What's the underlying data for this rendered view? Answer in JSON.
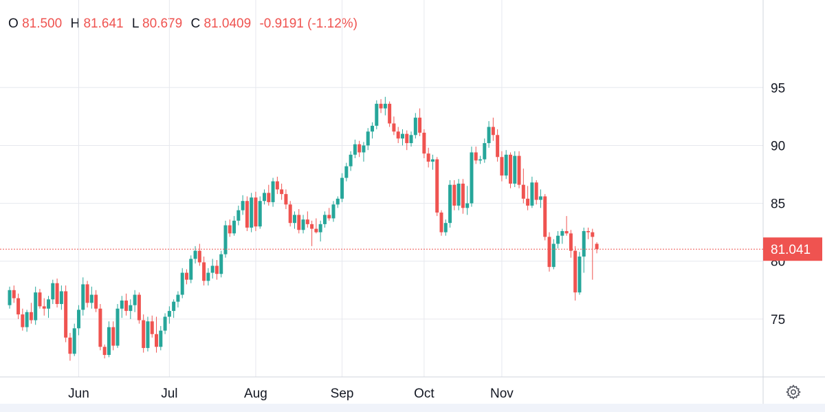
{
  "header": {
    "o_key": "O",
    "o_val": "81.500",
    "h_key": "H",
    "h_val": "81.641",
    "l_key": "L",
    "l_val": "80.679",
    "c_key": "C",
    "c_val": "81.0409",
    "change": "-0.9191 (-1.12%)"
  },
  "colors": {
    "up": "#26a69a",
    "down": "#ef5350",
    "grid": "#e6e8ee",
    "text": "#131722"
  },
  "settings_icon": "gear-icon",
  "chart_data": {
    "type": "candlestick",
    "ylim": [
      70,
      99
    ],
    "y_ticks": [
      75,
      80,
      85,
      90,
      95
    ],
    "x_labels": [
      "Jun",
      "Jul",
      "Aug",
      "Sep",
      "Oct",
      "Nov"
    ],
    "x_label_index": [
      16,
      37,
      57,
      77,
      96,
      114
    ],
    "last_price_label": "81.041",
    "last_price": 81.04,
    "grid": true,
    "candles": [
      [
        76.2,
        77.8,
        75.9,
        77.5
      ],
      [
        77.5,
        77.9,
        76.4,
        76.8
      ],
      [
        76.8,
        77.2,
        75.0,
        75.4
      ],
      [
        75.4,
        75.9,
        74.0,
        74.3
      ],
      [
        74.3,
        75.8,
        73.9,
        75.6
      ],
      [
        75.6,
        76.4,
        74.6,
        74.9
      ],
      [
        74.9,
        77.8,
        74.5,
        77.3
      ],
      [
        77.3,
        77.6,
        75.9,
        76.1
      ],
      [
        76.1,
        76.8,
        75.3,
        75.9
      ],
      [
        75.9,
        77.0,
        75.1,
        76.7
      ],
      [
        76.7,
        78.4,
        76.3,
        78.1
      ],
      [
        78.1,
        78.5,
        76.0,
        76.3
      ],
      [
        76.3,
        77.9,
        75.8,
        77.4
      ],
      [
        77.4,
        77.9,
        73.0,
        73.4
      ],
      [
        73.4,
        73.8,
        71.4,
        72.0
      ],
      [
        72.0,
        74.6,
        71.8,
        74.2
      ],
      [
        74.2,
        76.2,
        73.6,
        75.8
      ],
      [
        75.8,
        78.6,
        75.3,
        78.0
      ],
      [
        78.0,
        78.3,
        76.0,
        76.4
      ],
      [
        76.4,
        77.8,
        75.9,
        77.1
      ],
      [
        77.1,
        77.5,
        75.6,
        75.9
      ],
      [
        75.9,
        76.3,
        72.3,
        72.6
      ],
      [
        72.6,
        72.8,
        71.6,
        71.9
      ],
      [
        71.9,
        74.8,
        71.7,
        74.3
      ],
      [
        74.3,
        74.8,
        72.3,
        72.7
      ],
      [
        72.7,
        76.3,
        72.5,
        75.9
      ],
      [
        75.9,
        77.0,
        75.1,
        76.6
      ],
      [
        76.6,
        77.2,
        75.3,
        75.7
      ],
      [
        75.7,
        76.7,
        75.0,
        76.2
      ],
      [
        76.2,
        77.5,
        75.6,
        77.1
      ],
      [
        77.1,
        77.3,
        74.6,
        74.9
      ],
      [
        74.9,
        75.4,
        72.1,
        72.5
      ],
      [
        72.5,
        75.2,
        72.2,
        74.8
      ],
      [
        74.8,
        75.3,
        73.4,
        73.7
      ],
      [
        73.7,
        75.2,
        72.1,
        72.6
      ],
      [
        72.6,
        74.4,
        72.3,
        74.0
      ],
      [
        74.0,
        75.5,
        73.7,
        75.2
      ],
      [
        75.2,
        76.1,
        74.6,
        75.7
      ],
      [
        75.7,
        76.7,
        75.1,
        76.5
      ],
      [
        76.5,
        77.4,
        76.0,
        77.1
      ],
      [
        77.1,
        79.4,
        76.8,
        79.0
      ],
      [
        79.0,
        79.3,
        78.0,
        78.4
      ],
      [
        78.4,
        80.5,
        78.1,
        80.2
      ],
      [
        80.2,
        81.3,
        79.8,
        80.9
      ],
      [
        80.9,
        81.5,
        79.6,
        79.9
      ],
      [
        79.9,
        80.4,
        77.9,
        78.3
      ],
      [
        78.3,
        79.4,
        77.9,
        79.0
      ],
      [
        79.0,
        80.2,
        78.5,
        79.6
      ],
      [
        79.6,
        80.1,
        78.4,
        78.9
      ],
      [
        78.9,
        80.9,
        78.6,
        80.6
      ],
      [
        80.6,
        83.5,
        80.3,
        83.1
      ],
      [
        83.1,
        83.6,
        82.1,
        82.4
      ],
      [
        82.4,
        83.9,
        82.2,
        83.5
      ],
      [
        83.5,
        84.8,
        83.1,
        84.4
      ],
      [
        84.4,
        85.7,
        84.0,
        85.2
      ],
      [
        85.2,
        85.6,
        82.6,
        82.9
      ],
      [
        82.9,
        85.9,
        82.5,
        85.5
      ],
      [
        85.5,
        86.0,
        82.6,
        83.0
      ],
      [
        83.0,
        85.6,
        82.8,
        85.2
      ],
      [
        85.2,
        86.2,
        84.9,
        85.9
      ],
      [
        85.9,
        86.6,
        84.8,
        85.1
      ],
      [
        85.1,
        87.2,
        84.7,
        86.9
      ],
      [
        86.9,
        87.3,
        85.8,
        86.2
      ],
      [
        86.2,
        86.7,
        85.3,
        85.8
      ],
      [
        85.8,
        86.2,
        84.5,
        84.9
      ],
      [
        84.9,
        85.2,
        83.0,
        83.3
      ],
      [
        83.3,
        84.3,
        82.8,
        84.0
      ],
      [
        84.0,
        84.5,
        82.4,
        82.7
      ],
      [
        82.7,
        84.0,
        82.4,
        83.6
      ],
      [
        83.6,
        84.3,
        82.9,
        83.2
      ],
      [
        83.2,
        83.5,
        81.3,
        82.8
      ],
      [
        82.8,
        83.7,
        82.4,
        82.5
      ],
      [
        82.5,
        83.5,
        81.7,
        83.2
      ],
      [
        83.2,
        84.3,
        82.9,
        84.0
      ],
      [
        84.0,
        84.6,
        83.5,
        83.7
      ],
      [
        83.7,
        85.2,
        83.4,
        84.9
      ],
      [
        84.9,
        85.6,
        84.6,
        85.4
      ],
      [
        85.4,
        87.6,
        85.1,
        87.2
      ],
      [
        87.2,
        88.5,
        86.9,
        88.2
      ],
      [
        88.2,
        89.5,
        87.8,
        89.2
      ],
      [
        89.2,
        90.5,
        88.9,
        90.1
      ],
      [
        90.1,
        90.4,
        89.0,
        89.4
      ],
      [
        89.4,
        90.3,
        88.6,
        90.0
      ],
      [
        90.0,
        91.5,
        89.6,
        91.2
      ],
      [
        91.2,
        92.0,
        90.6,
        91.7
      ],
      [
        91.7,
        93.9,
        91.4,
        93.6
      ],
      [
        93.6,
        94.0,
        92.8,
        93.2
      ],
      [
        93.2,
        94.2,
        92.6,
        93.6
      ],
      [
        93.6,
        93.8,
        91.6,
        91.9
      ],
      [
        91.9,
        92.5,
        90.9,
        91.2
      ],
      [
        91.2,
        91.6,
        90.2,
        90.6
      ],
      [
        90.6,
        91.4,
        90.0,
        91.0
      ],
      [
        91.0,
        91.3,
        89.6,
        90.2
      ],
      [
        90.2,
        91.2,
        89.9,
        90.9
      ],
      [
        90.9,
        92.8,
        90.6,
        92.4
      ],
      [
        92.4,
        93.2,
        90.8,
        91.1
      ],
      [
        91.1,
        91.4,
        88.9,
        89.3
      ],
      [
        89.3,
        89.8,
        88.1,
        88.6
      ],
      [
        88.6,
        89.2,
        87.9,
        88.8
      ],
      [
        88.8,
        89.0,
        83.9,
        84.2
      ],
      [
        84.2,
        84.4,
        82.2,
        82.5
      ],
      [
        82.5,
        83.6,
        82.2,
        83.3
      ],
      [
        83.3,
        87.0,
        82.9,
        86.6
      ],
      [
        86.6,
        87.0,
        84.4,
        84.8
      ],
      [
        84.8,
        87.1,
        84.4,
        86.7
      ],
      [
        86.7,
        87.1,
        84.1,
        84.6
      ],
      [
        84.6,
        86.5,
        84.0,
        85.0
      ],
      [
        85.0,
        89.9,
        84.7,
        89.4
      ],
      [
        89.4,
        89.9,
        88.4,
        88.7
      ],
      [
        88.7,
        89.1,
        88.4,
        88.8
      ],
      [
        88.8,
        90.6,
        88.5,
        90.2
      ],
      [
        90.2,
        92.1,
        89.8,
        91.6
      ],
      [
        91.6,
        92.4,
        90.4,
        90.9
      ],
      [
        90.9,
        91.4,
        88.6,
        89.0
      ],
      [
        89.0,
        89.5,
        86.9,
        87.4
      ],
      [
        87.4,
        89.6,
        87.1,
        89.2
      ],
      [
        89.2,
        89.4,
        86.3,
        86.7
      ],
      [
        86.7,
        89.5,
        86.4,
        89.1
      ],
      [
        89.1,
        89.5,
        86.3,
        86.6
      ],
      [
        86.6,
        88.0,
        85.0,
        85.4
      ],
      [
        85.4,
        86.5,
        84.4,
        84.8
      ],
      [
        84.8,
        87.3,
        84.6,
        86.8
      ],
      [
        86.8,
        87.0,
        84.9,
        85.3
      ],
      [
        85.3,
        86.2,
        84.6,
        85.6
      ],
      [
        85.6,
        85.8,
        81.8,
        82.1
      ],
      [
        82.1,
        82.5,
        79.1,
        79.5
      ],
      [
        79.5,
        81.9,
        79.3,
        81.5
      ],
      [
        81.5,
        82.6,
        81.1,
        82.2
      ],
      [
        82.2,
        82.8,
        81.5,
        82.6
      ],
      [
        82.6,
        83.9,
        82.2,
        82.4
      ],
      [
        82.4,
        82.7,
        80.3,
        80.9
      ],
      [
        80.9,
        81.3,
        76.6,
        77.3
      ],
      [
        77.3,
        80.8,
        77.1,
        80.4
      ],
      [
        80.4,
        82.9,
        79.0,
        82.6
      ],
      [
        82.6,
        82.9,
        81.9,
        82.5
      ],
      [
        82.5,
        82.8,
        78.4,
        82.1
      ],
      [
        81.5,
        81.64,
        80.68,
        81.04
      ]
    ]
  }
}
